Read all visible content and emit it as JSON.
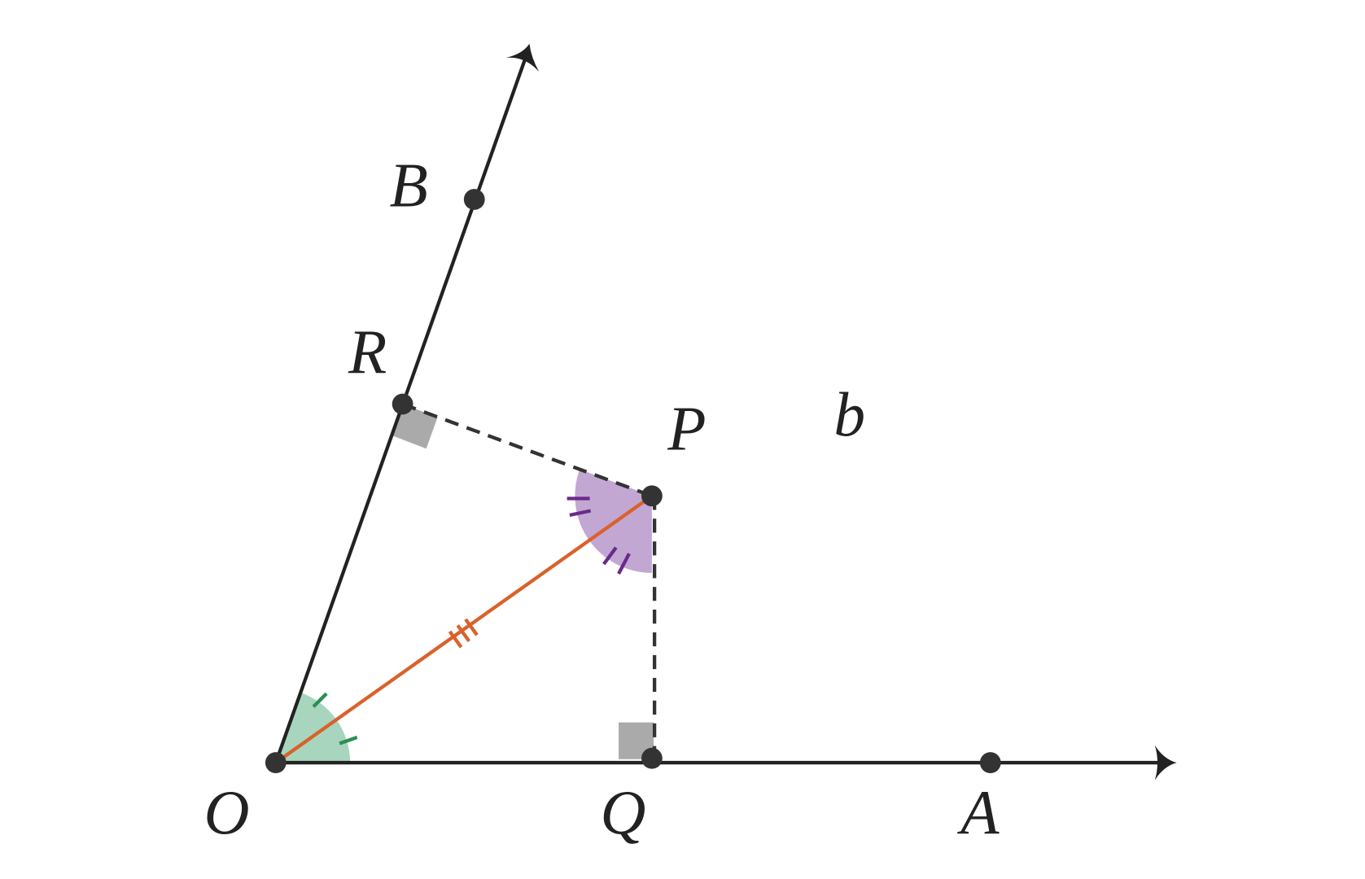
{
  "points": [
    {
      "label": "O"
    },
    {
      "label": "Q"
    },
    {
      "label": "A"
    },
    {
      "label": "B"
    },
    {
      "label": "R"
    },
    {
      "label": "P"
    }
  ],
  "region_label": "b"
}
